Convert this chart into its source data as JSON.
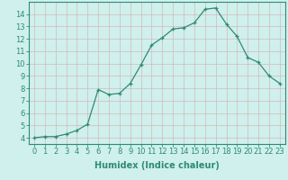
{
  "x": [
    0,
    1,
    2,
    3,
    4,
    5,
    6,
    7,
    8,
    9,
    10,
    11,
    12,
    13,
    14,
    15,
    16,
    17,
    18,
    19,
    20,
    21,
    22,
    23
  ],
  "y": [
    4.0,
    4.1,
    4.1,
    4.3,
    4.6,
    5.1,
    7.9,
    7.5,
    7.6,
    8.4,
    9.9,
    11.5,
    12.1,
    12.8,
    12.9,
    13.3,
    14.4,
    14.5,
    13.2,
    12.2,
    10.5,
    10.1,
    9.0,
    8.4
  ],
  "line_color": "#2e8b74",
  "marker": "+",
  "marker_size": 3,
  "background_color": "#cff0ec",
  "grid_color": "#d4b8b8",
  "xlabel": "Humidex (Indice chaleur)",
  "xlabel_fontsize": 7,
  "tick_fontsize": 6,
  "ylim": [
    3.5,
    15.0
  ],
  "xlim": [
    -0.5,
    23.5
  ],
  "yticks": [
    4,
    5,
    6,
    7,
    8,
    9,
    10,
    11,
    12,
    13,
    14
  ],
  "xticks": [
    0,
    1,
    2,
    3,
    4,
    5,
    6,
    7,
    8,
    9,
    10,
    11,
    12,
    13,
    14,
    15,
    16,
    17,
    18,
    19,
    20,
    21,
    22,
    23
  ]
}
